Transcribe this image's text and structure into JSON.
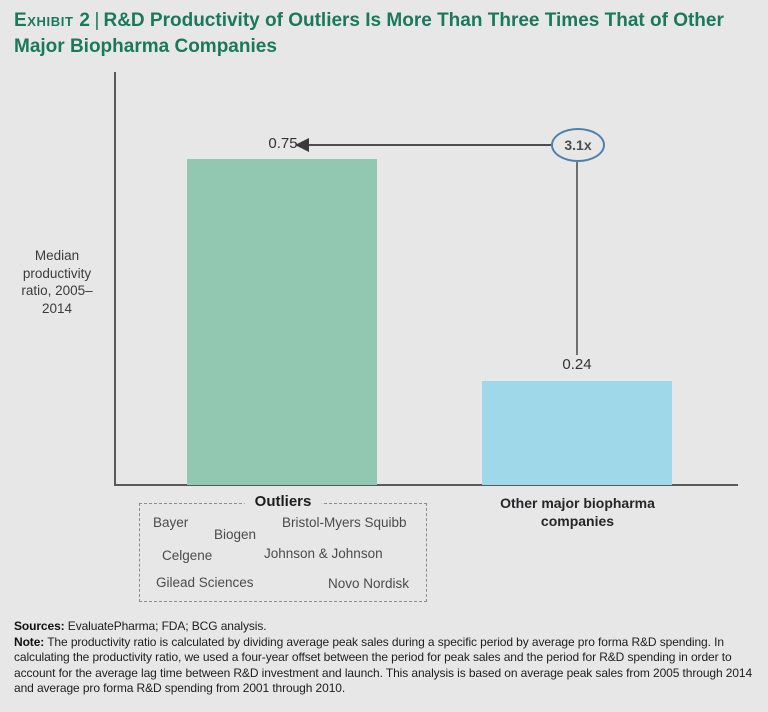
{
  "header": {
    "exhibit_label": "Exhibit 2",
    "separator": "|",
    "title": "R&D Productivity of Outliers Is More Than Three Times That of Other\nMajor Biopharma Companies"
  },
  "chart_data": {
    "type": "bar",
    "categories": [
      "Outliers",
      "Other major biopharma companies"
    ],
    "values": [
      0.75,
      0.24
    ],
    "data_labels": [
      "0.75",
      "0.24"
    ],
    "ylabel": "Median productivity ratio, 2005–2014",
    "ylim": [
      0,
      0.85
    ],
    "grid": false,
    "legend": false,
    "bar_colors": [
      "#92c7b1",
      "#9fd9e9"
    ],
    "annotation": "3.1x"
  },
  "outliers_box": {
    "title": "Outliers",
    "companies": [
      "Bayer",
      "Biogen",
      "Bristol-Myers Squibb",
      "Celgene",
      "Johnson & Johnson",
      "Gilead Sciences",
      "Novo Nordisk"
    ]
  },
  "footer": {
    "sources_label": "Sources:",
    "sources_text": "EvaluatePharma; FDA; BCG analysis.",
    "note_label": "Note:",
    "note_text": "The productivity ratio is calculated by dividing average peak sales during a specific period by average pro forma R&D spending. In calculating the productivity ratio, we used a four-year offset between the period for peak sales and the period for R&D spending in order to account for the average lag time between R&D investment and launch. This analysis is based on average peak sales from 2005 through 2014 and average pro forma R&D spending from 2001 through 2010."
  }
}
